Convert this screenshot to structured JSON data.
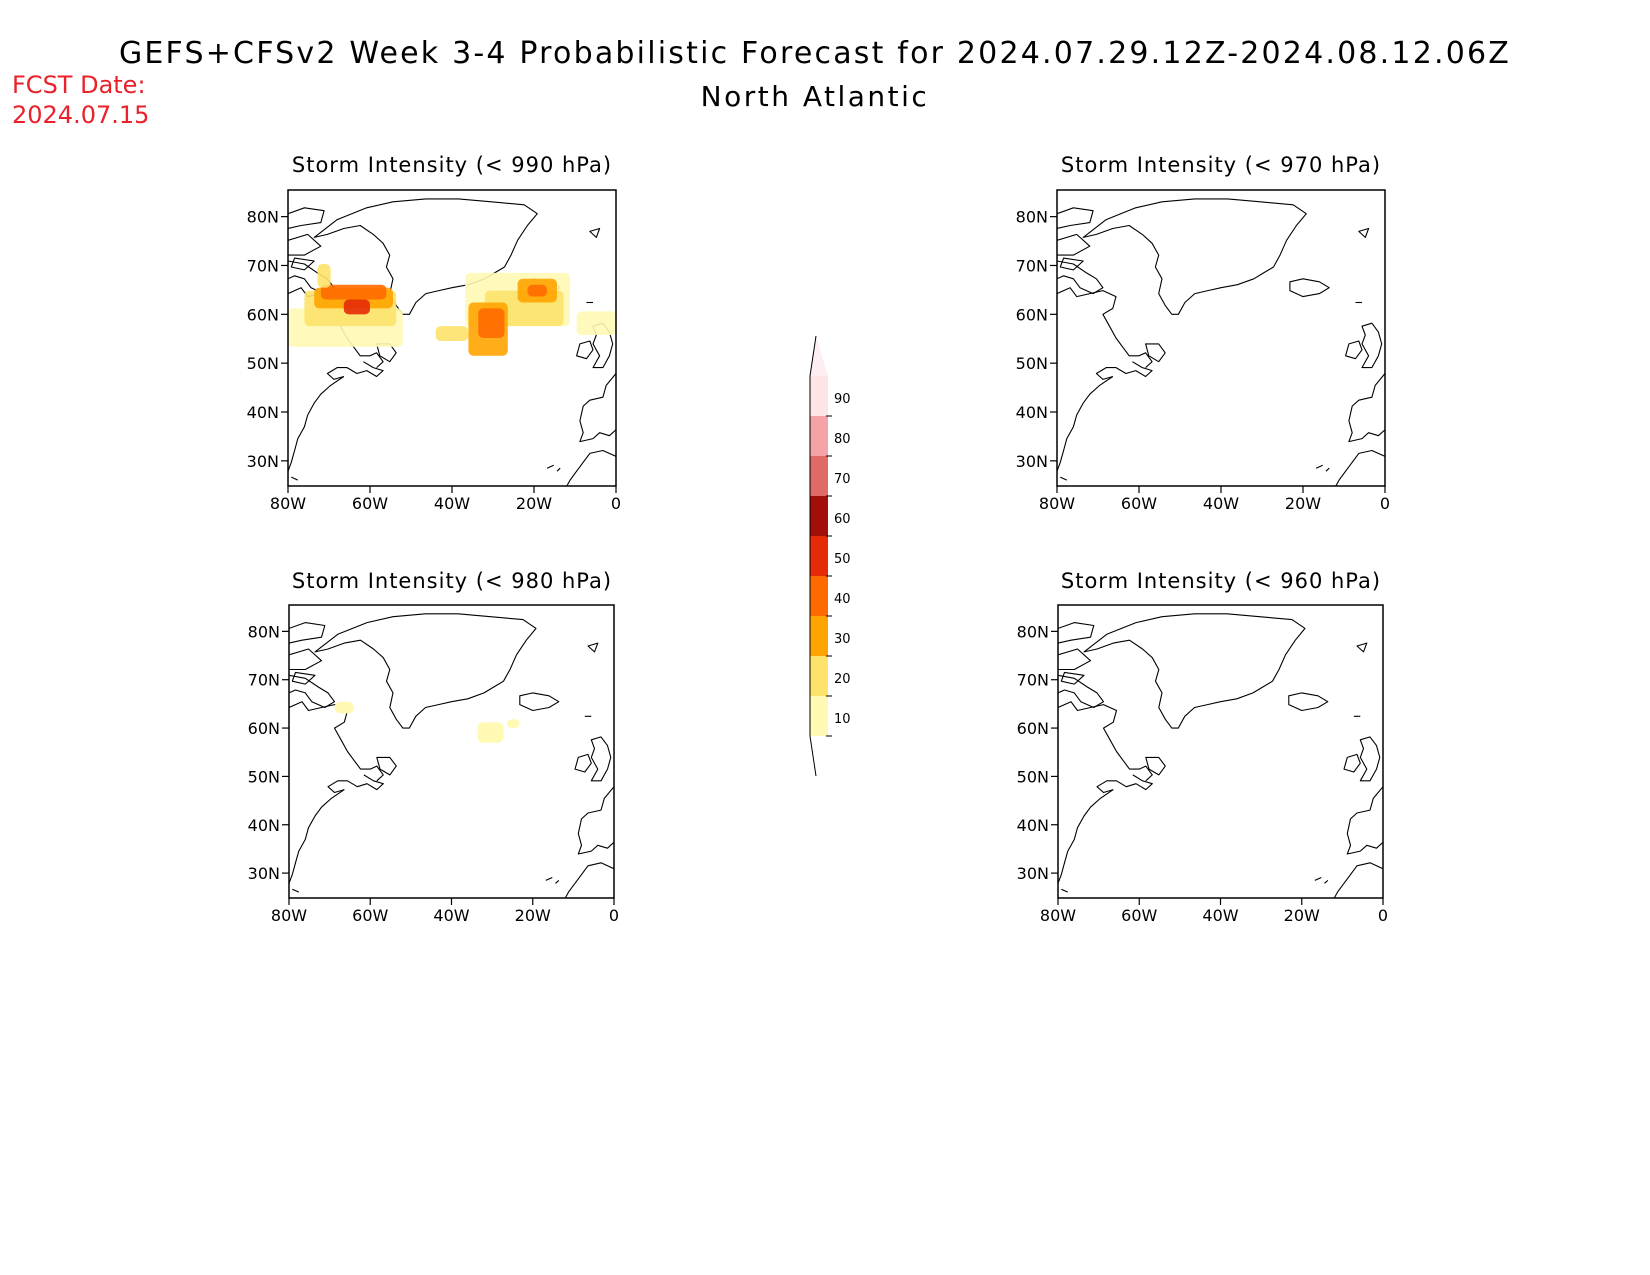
{
  "header": {
    "title": "GEFS+CFSv2 Week 3-4 Probabilistic Forecast for 2024.07.29.12Z-2024.08.12.06Z",
    "region": "North Atlantic",
    "fcst_label": "FCST Date:",
    "fcst_date": "2024.07.15"
  },
  "axes": {
    "lat_ticks": [
      "80N",
      "70N",
      "60N",
      "50N",
      "40N",
      "30N"
    ],
    "lon_ticks": [
      "80W",
      "60W",
      "40W",
      "20W",
      "0"
    ]
  },
  "panels": [
    {
      "id": "p990",
      "title": "Storm Intensity (< 990 hPa)"
    },
    {
      "id": "p970",
      "title": "Storm Intensity (< 970 hPa)"
    },
    {
      "id": "p980",
      "title": "Storm Intensity (< 980 hPa)"
    },
    {
      "id": "p960",
      "title": "Storm Intensity (< 960 hPa)"
    }
  ],
  "colorbar": {
    "labels": [
      "90",
      "80",
      "70",
      "60",
      "50",
      "40",
      "30",
      "20",
      "10"
    ],
    "colors": [
      "#fde4e6",
      "#f4a4a6",
      "#e06a66",
      "#a30d0a",
      "#e52a06",
      "#ff6a00",
      "#ffa400",
      "#fde26c",
      "#fff9b4"
    ]
  }
}
